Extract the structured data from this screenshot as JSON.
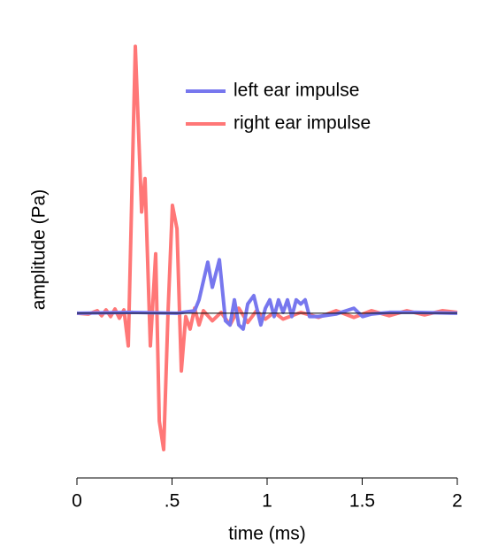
{
  "chart_data": {
    "type": "line",
    "x_label": "time (ms)",
    "y_label": "amplitude (Pa)",
    "xlim": [
      0,
      2
    ],
    "ylim": [
      -1.8,
      3.3
    ],
    "xticks": [
      0,
      {
        "value": 0.5,
        "label": ".5"
      },
      1,
      1.5,
      2
    ],
    "reference_line": 0,
    "series": [
      {
        "name": "right ear impulse",
        "color": "#ff7777",
        "x": [
          0,
          0.06,
          0.107,
          0.13,
          0.153,
          0.177,
          0.2,
          0.223,
          0.247,
          0.27,
          0.307,
          0.34,
          0.358,
          0.386,
          0.414,
          0.433,
          0.456,
          0.479,
          0.502,
          0.526,
          0.549,
          0.572,
          0.595,
          0.619,
          0.642,
          0.665,
          0.712,
          0.758,
          0.805,
          0.851,
          0.898,
          0.944,
          0.991,
          1.037,
          1.084,
          1.177,
          1.27,
          1.363,
          1.456,
          1.549,
          1.642,
          1.735,
          1.828,
          1.921,
          2
        ],
        "values": [
          0,
          -0.01,
          0.03,
          -0.03,
          0.04,
          -0.04,
          0.05,
          -0.06,
          0.04,
          -0.39,
          3.19,
          1.21,
          1.61,
          -0.39,
          0.71,
          -1.29,
          -1.63,
          0.01,
          1.29,
          1.01,
          -0.69,
          -0.04,
          -0.19,
          0.06,
          -0.14,
          0.03,
          -0.09,
          0.01,
          -0.14,
          0.06,
          -0.11,
          0.03,
          -0.07,
          0.01,
          -0.07,
          0.01,
          -0.05,
          0.03,
          -0.05,
          0.03,
          -0.03,
          0.03,
          -0.02,
          0.03,
          0.01
        ]
      },
      {
        "name": "left ear impulse",
        "color": "#7777ee",
        "x": [
          0,
          0.293,
          0.526,
          0.619,
          0.642,
          0.688,
          0.712,
          0.749,
          0.781,
          0.805,
          0.828,
          0.851,
          0.874,
          0.898,
          0.93,
          0.967,
          0.991,
          1.014,
          1.037,
          1.06,
          1.084,
          1.107,
          1.13,
          1.153,
          1.177,
          1.2,
          1.223,
          1.27,
          1.363,
          1.456,
          1.502,
          1.549,
          1.642,
          1.781,
          2
        ],
        "values": [
          0,
          0.01,
          0,
          0.03,
          0.16,
          0.61,
          0.31,
          0.64,
          -0.09,
          -0.14,
          0.16,
          -0.14,
          -0.19,
          0.11,
          0.21,
          -0.14,
          0.06,
          0.16,
          -0.04,
          0.16,
          0.01,
          0.16,
          -0.04,
          0.16,
          0.11,
          0.16,
          -0.04,
          -0.04,
          -0.01,
          0.06,
          -0.04,
          -0.01,
          0.01,
          0.01,
          0
        ]
      }
    ],
    "legend_order": [
      1,
      0
    ]
  }
}
